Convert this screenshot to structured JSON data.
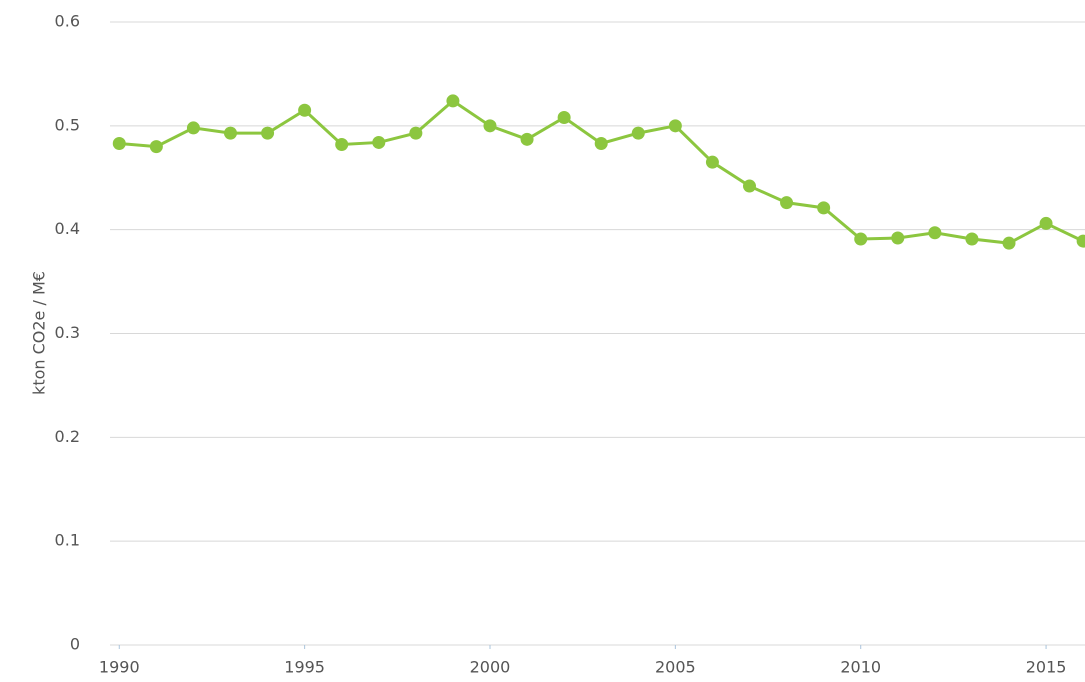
{
  "chart_data": {
    "type": "line",
    "y_label": "kton CO2e / M€",
    "x": [
      1990,
      1991,
      1992,
      1993,
      1994,
      1995,
      1996,
      1997,
      1998,
      1999,
      2000,
      2001,
      2002,
      2003,
      2004,
      2005,
      2006,
      2007,
      2008,
      2009,
      2010,
      2011,
      2012,
      2013,
      2014,
      2015,
      2016
    ],
    "series": [
      {
        "color": "#8cc63f",
        "values": [
          0.483,
          0.48,
          0.498,
          0.493,
          0.493,
          0.515,
          0.482,
          0.484,
          0.493,
          0.524,
          0.5,
          0.487,
          0.508,
          0.483,
          0.493,
          0.5,
          0.465,
          0.442,
          0.426,
          0.421,
          0.391,
          0.392,
          0.397,
          0.391,
          0.387,
          0.406,
          0.389
        ]
      }
    ],
    "xlim": [
      1989.75,
      2016.05
    ],
    "xticks": [
      1990,
      1995,
      2000,
      2005,
      2010,
      2015
    ],
    "ylim": [
      0,
      0.6
    ],
    "yticks": [
      0,
      0.1,
      0.2,
      0.3,
      0.4,
      0.5,
      0.6
    ],
    "grid": true
  }
}
